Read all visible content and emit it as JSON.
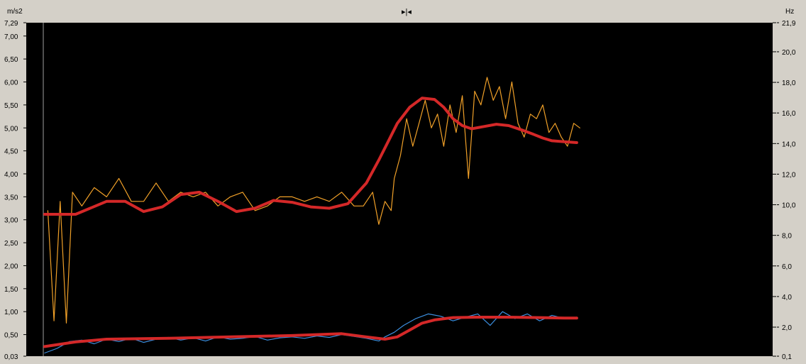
{
  "chart_data": {
    "type": "line",
    "left_axis": {
      "unit": "m/s2",
      "range": [
        0.03,
        7.29
      ],
      "ticks": [
        "7,29",
        "7,00",
        "6,50",
        "6,00",
        "5,50",
        "5,00",
        "4,50",
        "4,00",
        "3,50",
        "3,00",
        "2,50",
        "2,00",
        "1,50",
        "1,00",
        "0,50",
        "0,03"
      ],
      "tick_values": [
        7.29,
        7.0,
        6.5,
        6.0,
        5.5,
        5.0,
        4.5,
        4.0,
        3.5,
        3.0,
        2.5,
        2.0,
        1.5,
        1.0,
        0.5,
        0.03
      ]
    },
    "right_axis": {
      "unit": "Hz",
      "range": [
        0.1,
        21.9
      ],
      "ticks": [
        "21,9",
        "20,0",
        "18,0",
        "16,0",
        "14,0",
        "12,0",
        "10,0",
        "8,0",
        "6,0",
        "4,0",
        "2,0",
        "0,1"
      ],
      "tick_values": [
        21.9,
        20.0,
        18.0,
        16.0,
        14.0,
        12.0,
        10.0,
        8.0,
        6.0,
        4.0,
        2.0,
        0.1
      ]
    },
    "x_range": [
      0,
      100
    ],
    "grid": false,
    "series": [
      {
        "axis": "left",
        "color": "#f0a028",
        "style": "raw",
        "x": [
          0.5,
          1.5,
          2.5,
          3.5,
          4.5,
          6,
          8,
          10,
          12,
          14,
          16,
          18,
          20,
          22,
          24,
          26,
          28,
          30,
          32,
          34,
          36,
          38,
          40,
          42,
          44,
          46,
          48,
          50,
          51.5,
          53,
          54,
          55,
          56,
          56.5,
          57.5,
          58.5,
          59.5,
          60.5,
          61.5,
          62.5,
          63.5,
          64.5,
          65.5,
          66.5,
          67.5,
          68.5,
          69.5,
          70.5,
          71.5,
          72.5,
          73.5,
          74.5,
          75.5,
          76.5,
          77.5,
          78.5,
          79.5,
          80.5,
          81.5,
          82.5,
          83.5,
          84.5,
          85.5,
          86.5
        ],
        "values": [
          3.2,
          0.8,
          3.4,
          0.75,
          3.6,
          3.3,
          3.7,
          3.5,
          3.9,
          3.4,
          3.4,
          3.8,
          3.4,
          3.6,
          3.5,
          3.6,
          3.3,
          3.5,
          3.6,
          3.2,
          3.3,
          3.5,
          3.5,
          3.4,
          3.5,
          3.4,
          3.6,
          3.3,
          3.3,
          3.6,
          2.9,
          3.4,
          3.2,
          3.9,
          4.4,
          5.2,
          4.6,
          5.1,
          5.6,
          5.0,
          5.3,
          4.6,
          5.5,
          4.9,
          5.7,
          3.9,
          5.8,
          5.5,
          6.1,
          5.6,
          5.9,
          5.2,
          6.0,
          5.1,
          4.8,
          5.3,
          5.2,
          5.5,
          4.9,
          5.1,
          4.8,
          4.6,
          5.1,
          5.0
        ]
      },
      {
        "axis": "left",
        "color": "#d42828",
        "style": "smoothed",
        "x": [
          0,
          5,
          10,
          13,
          16,
          19,
          22,
          25,
          28,
          31,
          34,
          37,
          40,
          43,
          46,
          49,
          52,
          54,
          55.5,
          57,
          59,
          61,
          63,
          64.5,
          66,
          67.5,
          69,
          71,
          73,
          75,
          77,
          79,
          80.5,
          82,
          84,
          86
        ],
        "values": [
          3.12,
          3.12,
          3.4,
          3.4,
          3.18,
          3.28,
          3.55,
          3.6,
          3.4,
          3.18,
          3.25,
          3.42,
          3.38,
          3.28,
          3.25,
          3.35,
          3.8,
          4.3,
          4.7,
          5.1,
          5.45,
          5.65,
          5.62,
          5.45,
          5.2,
          5.05,
          4.98,
          5.03,
          5.08,
          5.05,
          4.96,
          4.86,
          4.78,
          4.72,
          4.7,
          4.68
        ]
      },
      {
        "axis": "left",
        "color": "#3c8fe0",
        "style": "raw",
        "x": [
          0,
          2,
          4,
          6,
          8,
          10,
          12,
          14,
          16,
          18,
          20,
          22,
          24,
          26,
          28,
          30,
          32,
          34,
          36,
          38,
          40,
          42,
          44,
          46,
          48,
          50,
          52,
          54,
          55,
          56.5,
          58,
          60,
          62,
          64,
          66,
          68,
          70,
          72,
          74,
          76,
          78,
          80,
          82,
          84,
          86
        ],
        "values": [
          0.1,
          0.2,
          0.35,
          0.38,
          0.3,
          0.4,
          0.35,
          0.42,
          0.33,
          0.4,
          0.44,
          0.38,
          0.43,
          0.36,
          0.45,
          0.4,
          0.42,
          0.46,
          0.38,
          0.43,
          0.45,
          0.42,
          0.47,
          0.44,
          0.5,
          0.46,
          0.42,
          0.36,
          0.45,
          0.55,
          0.7,
          0.85,
          0.95,
          0.9,
          0.8,
          0.88,
          0.95,
          0.7,
          1.0,
          0.85,
          0.95,
          0.8,
          0.92,
          0.85,
          0.88
        ]
      },
      {
        "axis": "left",
        "color": "#d42828",
        "style": "smoothed",
        "x": [
          0,
          5,
          10,
          20,
          30,
          40,
          48,
          52,
          55,
          57,
          59,
          61,
          63,
          66,
          70,
          75,
          80,
          84,
          86
        ],
        "values": [
          0.24,
          0.34,
          0.4,
          0.42,
          0.45,
          0.48,
          0.52,
          0.45,
          0.4,
          0.45,
          0.6,
          0.75,
          0.82,
          0.87,
          0.88,
          0.88,
          0.87,
          0.86,
          0.86
        ]
      }
    ]
  },
  "ui": {
    "splitter_glyph": "▸|◂"
  }
}
